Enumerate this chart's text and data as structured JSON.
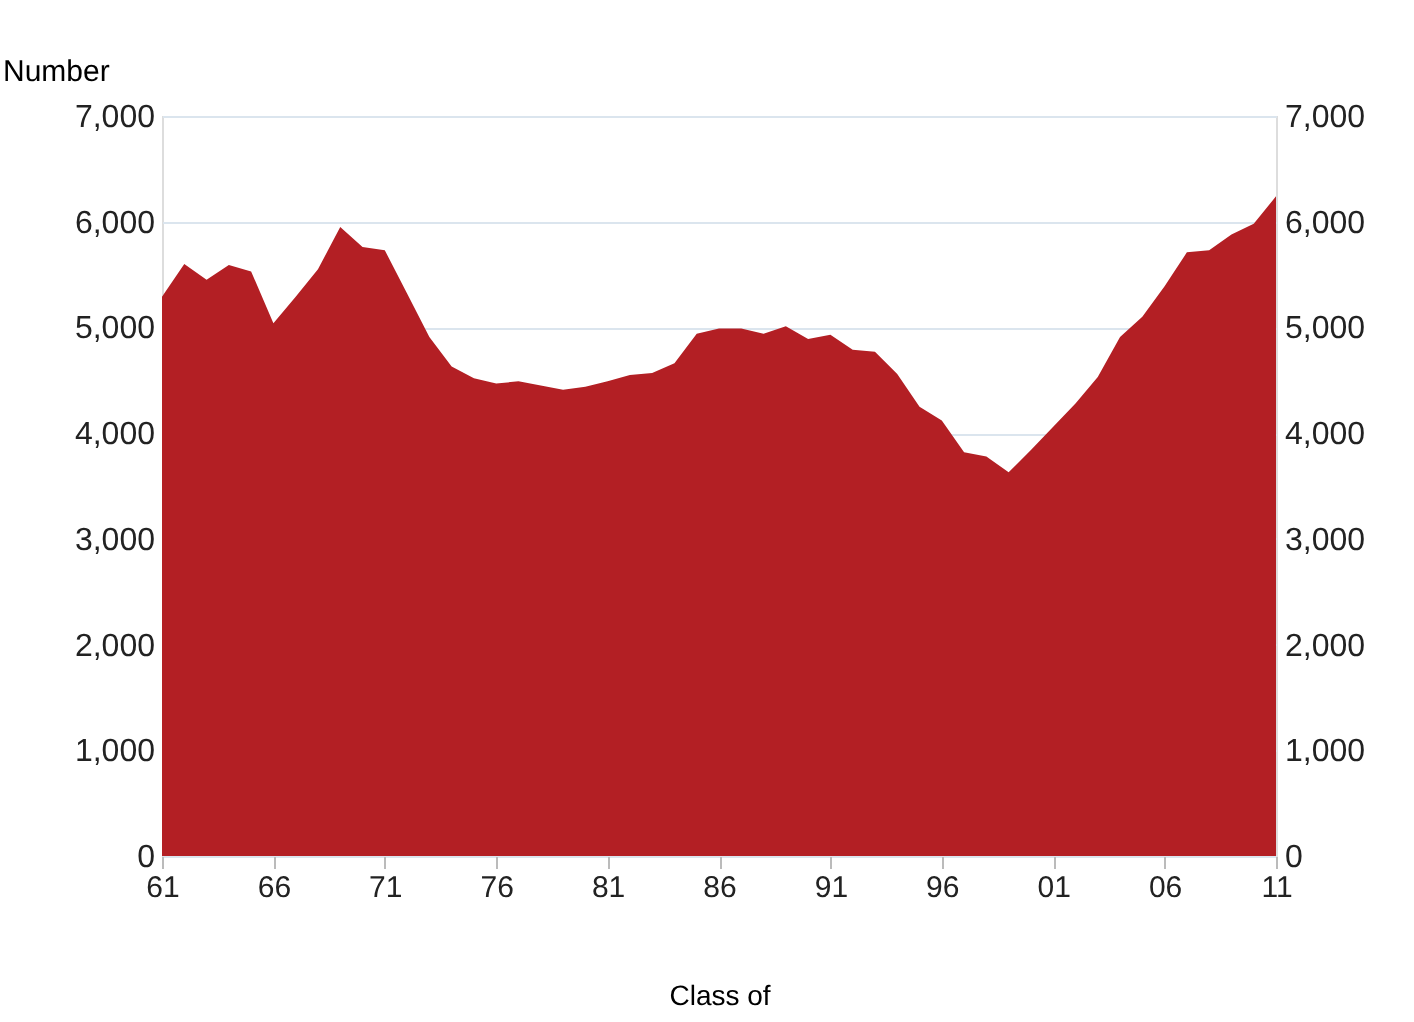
{
  "chart_data": {
    "type": "area",
    "ylabel": "Number",
    "xlabel": "Class of",
    "x": [
      1961,
      1962,
      1963,
      1964,
      1965,
      1966,
      1967,
      1968,
      1969,
      1970,
      1971,
      1972,
      1973,
      1974,
      1975,
      1976,
      1977,
      1978,
      1979,
      1980,
      1981,
      1982,
      1983,
      1984,
      1985,
      1986,
      1987,
      1988,
      1989,
      1990,
      1991,
      1992,
      1993,
      1994,
      1995,
      1996,
      1997,
      1998,
      1999,
      2000,
      2001,
      2002,
      2003,
      2004,
      2005,
      2006,
      2007,
      2008,
      2009,
      2010,
      2011
    ],
    "series": [
      {
        "color": "#b31f24",
        "values": [
          5290,
          5600,
          5450,
          5590,
          5530,
          5040,
          5290,
          5550,
          5950,
          5760,
          5730,
          5320,
          4910,
          4630,
          4520,
          4470,
          4490,
          4450,
          4410,
          4440,
          4490,
          4550,
          4570,
          4660,
          4940,
          4990,
          4990,
          4940,
          5010,
          4890,
          4930,
          4790,
          4770,
          4560,
          4250,
          4120,
          3820,
          3780,
          3630,
          3840,
          4060,
          4280,
          4530,
          4910,
          5100,
          5390,
          5710,
          5730,
          5880,
          5980,
          6240
        ]
      }
    ],
    "xlim": [
      1961,
      2011
    ],
    "xticks": [
      {
        "value": 1961,
        "label": "61"
      },
      {
        "value": 1966,
        "label": "66"
      },
      {
        "value": 1971,
        "label": "71"
      },
      {
        "value": 1976,
        "label": "76"
      },
      {
        "value": 1981,
        "label": "81"
      },
      {
        "value": 1986,
        "label": "86"
      },
      {
        "value": 1991,
        "label": "91"
      },
      {
        "value": 1996,
        "label": "96"
      },
      {
        "value": 2001,
        "label": "01"
      },
      {
        "value": 2006,
        "label": "06"
      },
      {
        "value": 2011,
        "label": "11"
      }
    ],
    "ylim": [
      0,
      7000
    ],
    "yticks": [
      {
        "value": 0,
        "label": "0"
      },
      {
        "value": 1000,
        "label": "1,000"
      },
      {
        "value": 2000,
        "label": "2,000"
      },
      {
        "value": 3000,
        "label": "3,000"
      },
      {
        "value": 4000,
        "label": "4,000"
      },
      {
        "value": 5000,
        "label": "5,000"
      },
      {
        "value": 6000,
        "label": "6,000"
      },
      {
        "value": 7000,
        "label": "7,000"
      }
    ],
    "y2lim": [
      0,
      7000
    ],
    "y2ticks": [
      {
        "value": 0,
        "label": "0"
      },
      {
        "value": 1000,
        "label": "1,000"
      },
      {
        "value": 2000,
        "label": "2,000"
      },
      {
        "value": 3000,
        "label": "3,000"
      },
      {
        "value": 4000,
        "label": "4,000"
      },
      {
        "value": 5000,
        "label": "5,000"
      },
      {
        "value": 6000,
        "label": "6,000"
      },
      {
        "value": 7000,
        "label": "7,000"
      }
    ],
    "grid": "y"
  }
}
